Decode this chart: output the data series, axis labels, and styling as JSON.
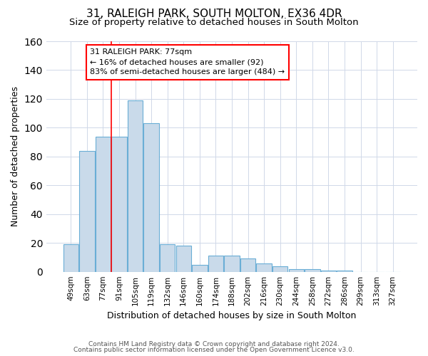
{
  "title1": "31, RALEIGH PARK, SOUTH MOLTON, EX36 4DR",
  "title2": "Size of property relative to detached houses in South Molton",
  "xlabel": "Distribution of detached houses by size in South Molton",
  "ylabel": "Number of detached properties",
  "footnote1": "Contains HM Land Registry data © Crown copyright and database right 2024.",
  "footnote2": "Contains public sector information licensed under the Open Government Licence v3.0.",
  "bin_labels": [
    "49sqm",
    "63sqm",
    "77sqm",
    "91sqm",
    "105sqm",
    "119sqm",
    "132sqm",
    "146sqm",
    "160sqm",
    "174sqm",
    "188sqm",
    "202sqm",
    "216sqm",
    "230sqm",
    "244sqm",
    "258sqm",
    "272sqm",
    "286sqm",
    "299sqm",
    "313sqm",
    "327sqm"
  ],
  "bar_values": [
    19,
    84,
    94,
    94,
    119,
    103,
    19,
    18,
    5,
    11,
    11,
    9,
    6,
    4,
    2,
    2,
    1,
    1,
    0,
    0,
    0
  ],
  "bar_color": "#c9daea",
  "bar_edge_color": "#6aaed6",
  "red_line_index": 2,
  "annotation_line1": "31 RALEIGH PARK: 77sqm",
  "annotation_line2": "← 16% of detached houses are smaller (92)",
  "annotation_line3": "83% of semi-detached houses are larger (484) →",
  "ylim_max": 160,
  "yticks": [
    0,
    20,
    40,
    60,
    80,
    100,
    120,
    140,
    160
  ],
  "grid_color": "#d0d8e8",
  "bg_color": "#ffffff",
  "title1_fontsize": 11,
  "title2_fontsize": 9.5
}
